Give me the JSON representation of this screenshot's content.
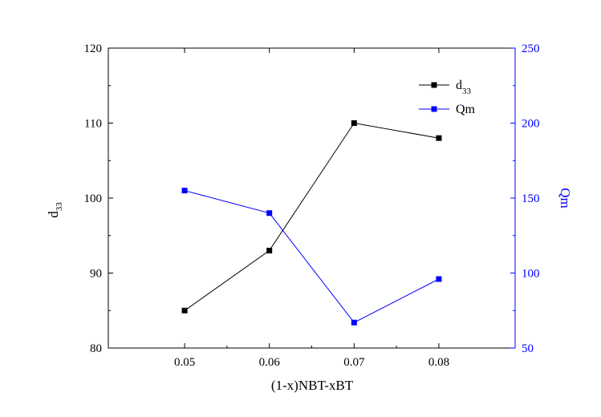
{
  "chart_data": {
    "type": "line",
    "x": [
      0.05,
      0.06,
      0.07,
      0.08
    ],
    "xlim": [
      0.041,
      0.089
    ],
    "x_ticks": [
      "0.05",
      "0.06",
      "0.07",
      "0.08"
    ],
    "xlabel": "(1-x)NBT-xBT",
    "y_left": {
      "label_main": "d",
      "label_sub": "33",
      "lim": [
        80,
        120
      ],
      "ticks": [
        "80",
        "90",
        "100",
        "110",
        "120"
      ],
      "color": "#000000"
    },
    "y_right": {
      "label": "Qm",
      "lim": [
        50,
        250
      ],
      "ticks": [
        "50",
        "100",
        "150",
        "200",
        "250"
      ],
      "color": "#0000ff"
    },
    "series": [
      {
        "name_main": "d",
        "name_sub": "33",
        "axis": "left",
        "color": "#000000",
        "marker": "square",
        "values": [
          85,
          93,
          110,
          108
        ]
      },
      {
        "name": "Qm",
        "axis": "right",
        "color": "#0000ff",
        "marker": "square",
        "values": [
          155,
          140,
          67,
          96
        ]
      }
    ],
    "legend": "top-right",
    "grid": false
  }
}
